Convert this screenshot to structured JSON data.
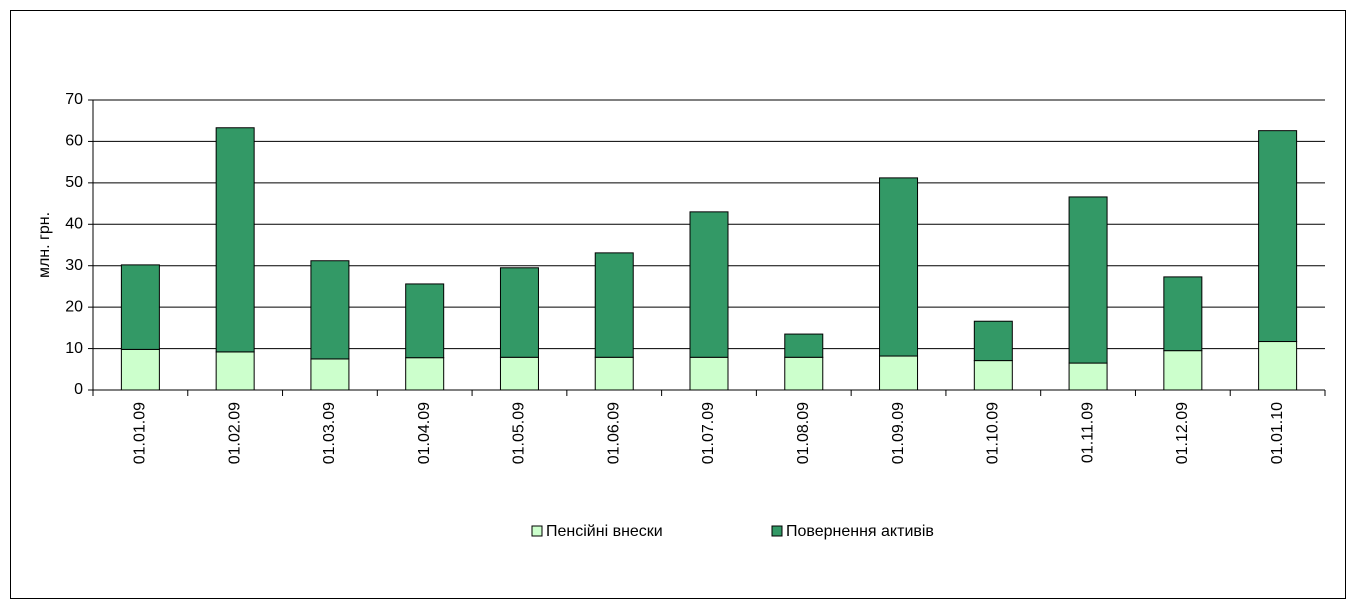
{
  "chart_data": {
    "type": "stacked_bar",
    "y_label": "млн. грн.",
    "categories": [
      "01.01.09",
      "01.02.09",
      "01.03.09",
      "01.04.09",
      "01.05.09",
      "01.06.09",
      "01.07.09",
      "01.08.09",
      "01.09.09",
      "01.10.09",
      "01.11.09",
      "01.12.09",
      "01.01.10"
    ],
    "series": [
      {
        "name": "Пенсійні внески",
        "color": "#ccffcc",
        "values": [
          9.8,
          9.2,
          7.5,
          7.8,
          7.9,
          7.9,
          7.9,
          7.9,
          8.2,
          7.1,
          6.5,
          9.5,
          11.7
        ]
      },
      {
        "name": "Повернення активів",
        "color": "#339966",
        "values": [
          20.4,
          54.1,
          23.7,
          17.8,
          21.6,
          25.2,
          35.1,
          5.6,
          43,
          9.5,
          40.1,
          17.8,
          50.9
        ]
      }
    ],
    "ylim": [
      0,
      70
    ],
    "yticks": [
      0,
      10,
      20,
      30,
      40,
      50,
      60,
      70
    ],
    "grid": true,
    "legend": "bottom"
  }
}
